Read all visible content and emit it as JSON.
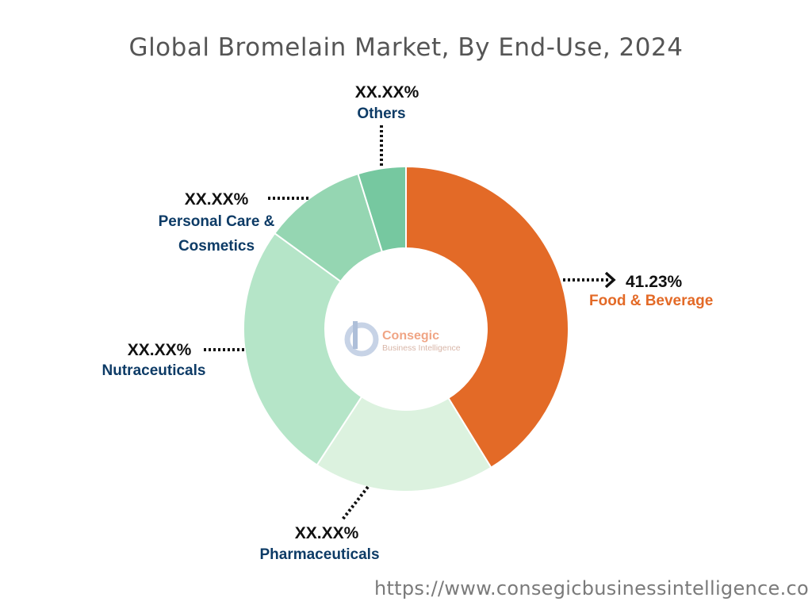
{
  "title": "Global Bromelain Market, By End-Use, 2024",
  "chart_data": {
    "type": "pie",
    "title": "Global Bromelain Market, By End-Use, 2024",
    "donut": true,
    "start_angle_deg": 0,
    "slices": [
      {
        "name": "Food & Beverage",
        "label": "41.23%",
        "value": 41.23,
        "color": "#e36a27",
        "label_color": "#e36a27"
      },
      {
        "name": "Pharmaceuticals",
        "label": "XX.XX%",
        "value": 18.0,
        "color": "#dcf2df",
        "label_color": "#0d3b66"
      },
      {
        "name": "Nutraceuticals",
        "label": "XX.XX%",
        "value": 25.8,
        "color": "#b5e5c8",
        "label_color": "#0d3b66"
      },
      {
        "name": "Personal Care & Cosmetics",
        "label": "XX.XX%",
        "value": 10.2,
        "color": "#95d6b2",
        "label_color": "#0d3b66"
      },
      {
        "name": "Others",
        "label": "XX.XX%",
        "value": 4.77,
        "color": "#76c8a0",
        "label_color": "#0d3b66"
      }
    ]
  },
  "labels": {
    "food_pct": "41.23%",
    "food_name": "Food & Beverage",
    "pharma_pct": "XX.XX%",
    "pharma_name": "Pharmaceuticals",
    "nutra_pct": "XX.XX%",
    "nutra_name": "Nutraceuticals",
    "personal_pct": "XX.XX%",
    "personal_name_line1": "Personal Care &",
    "personal_name_line2": "Cosmetics",
    "others_pct": "XX.XX%",
    "others_name": "Others"
  },
  "logo": {
    "name": "Consegic",
    "tagline": "Business Intelligence"
  },
  "source_url": "https://www.consegicbusinessintelligence.co"
}
